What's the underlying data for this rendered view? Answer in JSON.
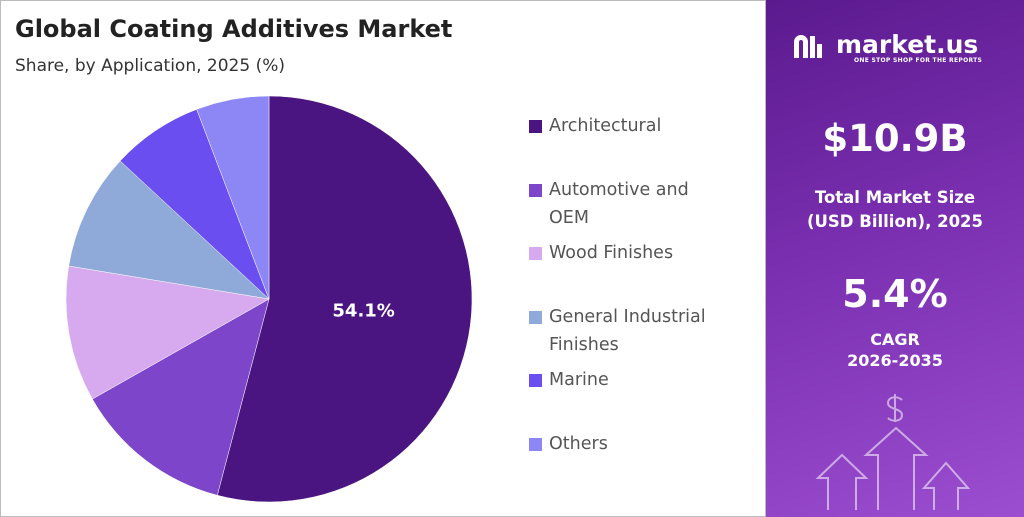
{
  "chart_data": {
    "type": "pie",
    "title": "Global Coating Additives Market",
    "subtitle": "Share, by Application, 2025 (%)",
    "categories": [
      "Architectural",
      "Automotive and OEM",
      "Wood Finishes",
      "General Industrial Finishes",
      "Marine",
      "Others"
    ],
    "values": [
      54.1,
      12.7,
      10.8,
      9.3,
      7.3,
      5.8
    ],
    "value_labels": [
      "54.1%",
      null,
      null,
      null,
      null,
      null
    ],
    "colors": [
      "#4a1580",
      "#7d45c9",
      "#d7aaf0",
      "#8fa9d9",
      "#6a4ef0",
      "#8d86f5"
    ],
    "legend": "right"
  },
  "panel": {
    "logo": "market.us",
    "tagline": "ONE STOP SHOP FOR THE REPORTS",
    "market_size": "$10.9B",
    "market_size_label": "Total Market Size (USD Billion), 2025",
    "cagr": "5.4%",
    "cagr_label": "CAGR",
    "period": "2026-2035"
  }
}
